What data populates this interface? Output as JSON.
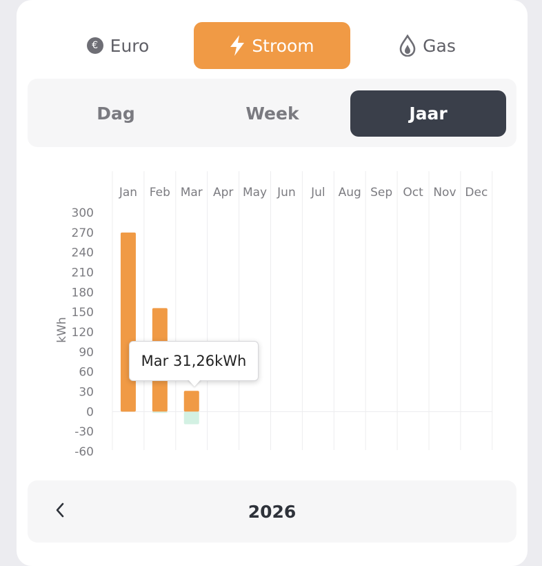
{
  "energy_tabs": {
    "euro": "Euro",
    "stroom": "Stroom",
    "gas": "Gas",
    "active": "stroom"
  },
  "period_tabs": {
    "dag": "Dag",
    "week": "Week",
    "jaar": "Jaar",
    "active": "jaar"
  },
  "colors": {
    "accent": "#f09a45",
    "active_dark": "#3a3f4a",
    "negative_bar": "#d3f1e3"
  },
  "tooltip": {
    "text": "Mar 31,26kWh"
  },
  "year_nav": {
    "year": "2026",
    "prev_icon": "chevron-left-icon"
  },
  "chart_data": {
    "type": "bar",
    "title": "",
    "xlabel": "",
    "ylabel": "kWh",
    "categories": [
      "Jan",
      "Feb",
      "Mar",
      "Apr",
      "May",
      "Jun",
      "Jul",
      "Aug",
      "Sep",
      "Oct",
      "Nov",
      "Dec"
    ],
    "ylim": [
      -60,
      300
    ],
    "yticks": [
      300,
      270,
      240,
      210,
      180,
      150,
      120,
      90,
      60,
      30,
      0,
      -30,
      -60
    ],
    "x_axis_position": "top",
    "grid": "vertical",
    "series": [
      {
        "color": "#f09a45",
        "values": [
          270,
          156,
          31.26,
          null,
          null,
          null,
          null,
          null,
          null,
          null,
          null,
          null
        ]
      },
      {
        "color": "#d3f1e3",
        "values": [
          0,
          -2,
          -19,
          null,
          null,
          null,
          null,
          null,
          null,
          null,
          null,
          null
        ]
      }
    ]
  }
}
